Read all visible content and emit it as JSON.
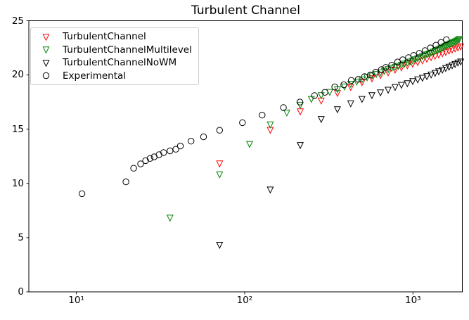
{
  "figure": {
    "title": "Turbulent Channel",
    "background": "#ffffff"
  },
  "chart_data": {
    "type": "scatter",
    "title": "Turbulent Channel",
    "xlabel": "",
    "ylabel": "",
    "xscale": "log",
    "xlim": [
      5.2,
      1971
    ],
    "ylim": [
      0,
      25
    ],
    "grid": false,
    "legend_position": "upper left",
    "xticks": {
      "values": [
        10,
        100,
        1000
      ],
      "labels": [
        "10¹",
        "10²",
        "10³"
      ]
    },
    "yticks": {
      "values": [
        0,
        5,
        10,
        15,
        20,
        25
      ],
      "labels": [
        "0",
        "5",
        "10",
        "15",
        "20",
        "25"
      ]
    },
    "marker_edge_colors": {
      "TurbulentChannel": "#ff0000",
      "TurbulentChannelMultilevel": "#008000",
      "TurbulentChannelNoWM": "#000000",
      "Experimental": "#000000"
    },
    "series": [
      {
        "name": "TurbulentChannel",
        "marker": "triangle-down",
        "fill": "none",
        "color": "#ff0000",
        "x": [
          71,
          142,
          214,
          285,
          356,
          427,
          498,
          570,
          641,
          712,
          783,
          854,
          926,
          997,
          1068,
          1139,
          1210,
          1282,
          1353,
          1424,
          1495,
          1566,
          1638,
          1709,
          1780,
          1851,
          1922
        ],
        "y": [
          11.8,
          14.9,
          16.6,
          17.6,
          18.3,
          18.85,
          19.3,
          19.65,
          19.95,
          20.2,
          20.45,
          20.65,
          20.85,
          21.0,
          21.15,
          21.3,
          21.45,
          21.6,
          21.72,
          21.84,
          21.96,
          22.08,
          22.2,
          22.3,
          22.4,
          22.5,
          22.6
        ]
      },
      {
        "name": "TurbulentChannelMultilevel",
        "marker": "triangle-down",
        "fill": "none",
        "color": "#008000",
        "x": [
          36,
          71,
          107,
          142,
          178,
          214,
          249,
          285,
          320,
          356,
          392,
          427,
          463,
          498,
          534,
          570,
          605,
          641,
          676,
          712,
          748,
          783,
          819,
          854,
          890,
          926,
          961,
          997,
          1032,
          1068,
          1104,
          1139,
          1175,
          1210,
          1246,
          1281,
          1317,
          1353,
          1388,
          1424,
          1459,
          1495,
          1531,
          1566,
          1602,
          1638,
          1673,
          1709,
          1744,
          1780,
          1816,
          1851,
          1887
        ],
        "y": [
          6.8,
          10.8,
          13.6,
          15.4,
          16.5,
          17.2,
          17.75,
          18.1,
          18.4,
          18.65,
          18.9,
          19.15,
          19.35,
          19.55,
          19.75,
          19.9,
          20.05,
          20.2,
          20.35,
          20.5,
          20.6,
          20.7,
          20.8,
          20.9,
          21.0,
          21.1,
          21.2,
          21.3,
          21.4,
          21.5,
          21.6,
          21.7,
          21.78,
          21.86,
          21.94,
          22.02,
          22.1,
          22.18,
          22.26,
          22.34,
          22.42,
          22.5,
          22.58,
          22.66,
          22.74,
          22.8,
          22.86,
          22.92,
          22.98,
          23.05,
          23.12,
          23.2,
          23.28
        ]
      },
      {
        "name": "TurbulentChannelNoWM",
        "marker": "triangle-down",
        "fill": "none",
        "color": "#000000",
        "x": [
          71,
          142,
          214,
          285,
          356,
          427,
          498,
          570,
          641,
          712,
          783,
          854,
          926,
          997,
          1068,
          1139,
          1210,
          1282,
          1353,
          1424,
          1495,
          1566,
          1638,
          1709,
          1780,
          1851,
          1922
        ],
        "y": [
          4.3,
          9.4,
          13.5,
          15.9,
          16.8,
          17.35,
          17.75,
          18.1,
          18.35,
          18.6,
          18.85,
          19.05,
          19.2,
          19.4,
          19.55,
          19.7,
          19.85,
          20.0,
          20.15,
          20.3,
          20.45,
          20.6,
          20.72,
          20.85,
          20.97,
          21.1,
          21.2
        ]
      },
      {
        "name": "Experimental",
        "marker": "circle",
        "fill": "none",
        "color": "#000000",
        "x": [
          10.8,
          19.7,
          21.9,
          24.1,
          25.8,
          27.4,
          29,
          31,
          33,
          36,
          39,
          41.5,
          48,
          57,
          71,
          97,
          127,
          170,
          213,
          260,
          300,
          343,
          388,
          430,
          473,
          516,
          558,
          600,
          650,
          690,
          747,
          810,
          870,
          940,
          1010,
          1090,
          1180,
          1270,
          1370,
          1470,
          1580
        ],
        "y": [
          9.05,
          10.15,
          11.4,
          11.8,
          12.1,
          12.3,
          12.45,
          12.65,
          12.85,
          13.0,
          13.15,
          13.45,
          13.9,
          14.3,
          14.9,
          15.6,
          16.3,
          17.0,
          17.5,
          18.1,
          18.4,
          18.9,
          19.1,
          19.5,
          19.6,
          19.85,
          20.0,
          20.25,
          20.5,
          20.7,
          20.9,
          21.2,
          21.4,
          21.6,
          21.8,
          22.0,
          22.25,
          22.5,
          22.75,
          23.0,
          23.25
        ]
      }
    ]
  }
}
